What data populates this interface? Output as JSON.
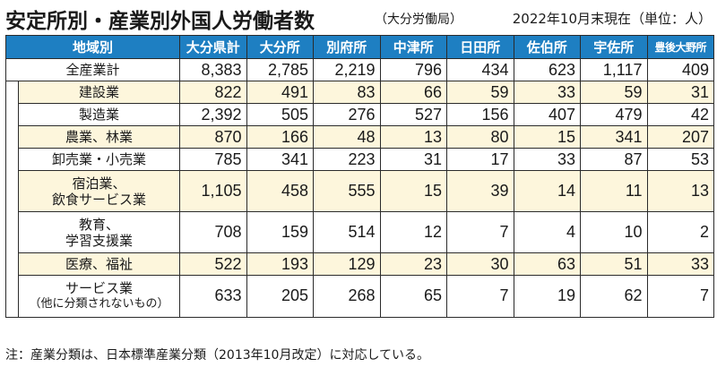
{
  "title": "安定所別・産業別外国人労働者数",
  "source": "（大分労働局）",
  "as_of": "2022年10月末現在（単位：人）",
  "columns": [
    "地域別",
    "大分県計",
    "大分所",
    "別府所",
    "中津所",
    "日田所",
    "佐伯所",
    "宇佐所",
    "豊後大野所"
  ],
  "total_row": {
    "label": "全産業計",
    "values": [
      "8,383",
      "2,785",
      "2,219",
      "796",
      "434",
      "623",
      "1,117",
      "409"
    ]
  },
  "rows": [
    {
      "label": "建設業",
      "values": [
        "822",
        "491",
        "83",
        "66",
        "59",
        "33",
        "59",
        "31"
      ]
    },
    {
      "label": "製造業",
      "values": [
        "2,392",
        "505",
        "276",
        "527",
        "156",
        "407",
        "479",
        "42"
      ]
    },
    {
      "label": "農業、林業",
      "values": [
        "870",
        "166",
        "48",
        "13",
        "80",
        "15",
        "341",
        "207"
      ]
    },
    {
      "label": "卸売業・小売業",
      "values": [
        "785",
        "341",
        "223",
        "31",
        "17",
        "33",
        "87",
        "53"
      ]
    },
    {
      "label_line1": "宿泊業、",
      "label_line2": "飲食サービス業",
      "values": [
        "1,105",
        "458",
        "555",
        "15",
        "39",
        "14",
        "11",
        "13"
      ]
    },
    {
      "label_line1": "教育、",
      "label_line2": "学習支援業",
      "values": [
        "708",
        "159",
        "514",
        "12",
        "7",
        "4",
        "10",
        "2"
      ]
    },
    {
      "label": "医療、福祉",
      "values": [
        "522",
        "193",
        "129",
        "23",
        "30",
        "63",
        "51",
        "33"
      ]
    },
    {
      "label_line1": "サービス業",
      "label_line2": "（他に分類されないもの）",
      "values": [
        "633",
        "205",
        "268",
        "65",
        "7",
        "19",
        "62",
        "7"
      ]
    }
  ],
  "footnote": "注：産業分類は、日本標準産業分類（2013年10月改定）に対応している。",
  "colors": {
    "header_bg": "#1e7fc2",
    "shade": "#fdf6dc",
    "border": "#2b2b2b"
  }
}
